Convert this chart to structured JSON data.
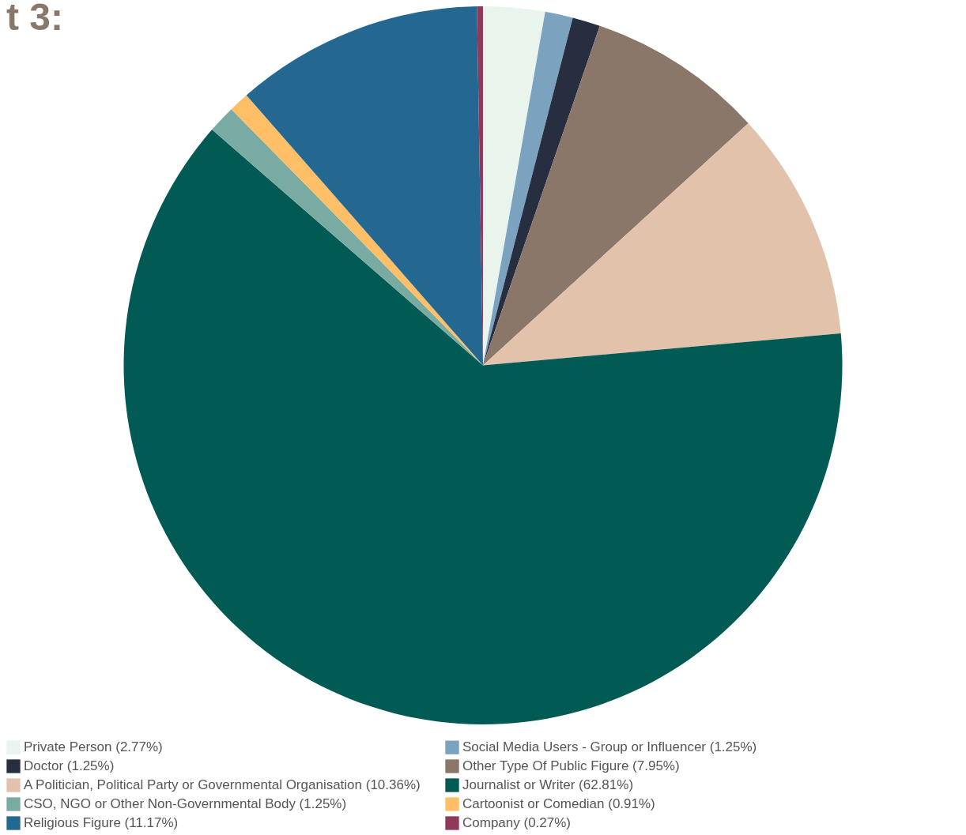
{
  "chart_data": {
    "type": "pie",
    "title": "t 3:",
    "categories": [
      "Private Person (2.77%)",
      "Social Media Users - Group or Influencer (1.25%)",
      "Doctor (1.25%)",
      "Other Type Of Public Figure (7.95%)",
      "A Politician, Political Party or Governmental Organisation (10.36%)",
      "Journalist or Writer (62.81%)",
      "CSO, NGO or Other Non-Governmental Body (1.25%)",
      "Cartoonist or Comedian (0.91%)",
      "Religious Figure (11.17%)",
      "Company (0.27%)"
    ],
    "values": [
      2.77,
      1.25,
      1.25,
      7.95,
      10.36,
      62.81,
      1.25,
      0.91,
      11.17,
      0.27
    ],
    "colors": [
      "#e8f4ec",
      "#7ba3bf",
      "#272e40",
      "#8a7769",
      "#e2c2ab",
      "#025a54",
      "#7aaba3",
      "#ffbf66",
      "#246891",
      "#8f3a5a"
    ],
    "legend": "bottom"
  }
}
